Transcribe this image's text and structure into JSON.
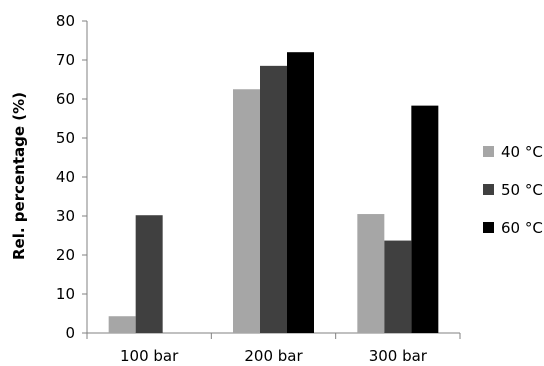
{
  "chart_data": {
    "type": "bar",
    "title": "",
    "xlabel": "",
    "ylabel": "Rel. percentage (%)",
    "categories": [
      "100 bar",
      "200 bar",
      "300 bar"
    ],
    "ylim": [
      0,
      80
    ],
    "yticks": [
      0,
      10,
      20,
      30,
      40,
      50,
      60,
      70,
      80
    ],
    "grid": false,
    "legend_position": "right",
    "series": [
      {
        "name": "40 °C",
        "color": "#a6a6a6",
        "values": [
          4.3,
          62.5,
          30.5
        ]
      },
      {
        "name": "50 °C",
        "color": "#404040",
        "values": [
          30.2,
          68.5,
          23.7
        ]
      },
      {
        "name": "60 °C",
        "color": "#000000",
        "values": [
          0,
          72.0,
          58.3
        ]
      }
    ]
  }
}
